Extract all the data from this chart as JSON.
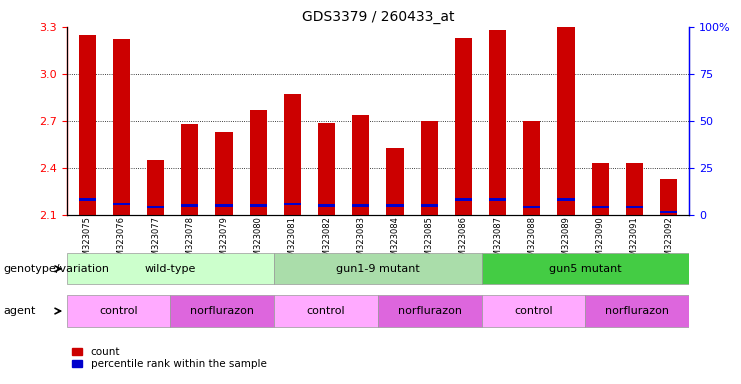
{
  "title": "GDS3379 / 260433_at",
  "samples": [
    "GSM323075",
    "GSM323076",
    "GSM323077",
    "GSM323078",
    "GSM323079",
    "GSM323080",
    "GSM323081",
    "GSM323082",
    "GSM323083",
    "GSM323084",
    "GSM323085",
    "GSM323086",
    "GSM323087",
    "GSM323088",
    "GSM323089",
    "GSM323090",
    "GSM323091",
    "GSM323092"
  ],
  "count_values": [
    3.25,
    3.22,
    2.45,
    2.68,
    2.63,
    2.77,
    2.87,
    2.69,
    2.74,
    2.53,
    2.7,
    3.23,
    3.28,
    2.7,
    3.3,
    2.43,
    2.43,
    2.33
  ],
  "percentile_values": [
    2.2,
    2.17,
    2.15,
    2.16,
    2.16,
    2.16,
    2.17,
    2.16,
    2.16,
    2.16,
    2.16,
    2.2,
    2.2,
    2.15,
    2.2,
    2.15,
    2.15,
    2.12
  ],
  "ymin": 2.1,
  "ymax": 3.3,
  "y_ticks": [
    2.1,
    2.4,
    2.7,
    3.0,
    3.3
  ],
  "right_yticks": [
    0,
    25,
    50,
    75,
    100
  ],
  "right_ytick_labels": [
    "0",
    "25",
    "50",
    "75",
    "100%"
  ],
  "bar_color": "#cc0000",
  "percentile_color": "#0000cc",
  "background_color": "#ffffff",
  "plot_bg_color": "#ffffff",
  "genotype_groups": [
    {
      "label": "wild-type",
      "start": 0,
      "end": 6,
      "color": "#ccffcc"
    },
    {
      "label": "gun1-9 mutant",
      "start": 6,
      "end": 12,
      "color": "#aaddaa"
    },
    {
      "label": "gun5 mutant",
      "start": 12,
      "end": 18,
      "color": "#44cc44"
    }
  ],
  "agent_groups": [
    {
      "label": "control",
      "start": 0,
      "end": 3,
      "color": "#ffaaff"
    },
    {
      "label": "norflurazon",
      "start": 3,
      "end": 6,
      "color": "#dd66dd"
    },
    {
      "label": "control",
      "start": 6,
      "end": 9,
      "color": "#ffaaff"
    },
    {
      "label": "norflurazon",
      "start": 9,
      "end": 12,
      "color": "#dd66dd"
    },
    {
      "label": "control",
      "start": 12,
      "end": 15,
      "color": "#ffaaff"
    },
    {
      "label": "norflurazon",
      "start": 15,
      "end": 18,
      "color": "#dd66dd"
    }
  ],
  "genotype_label": "genotype/variation",
  "agent_label": "agent",
  "legend_count": "count",
  "legend_percentile": "percentile rank within the sample",
  "title_fontsize": 10,
  "axis_fontsize": 8,
  "label_fontsize": 8,
  "group_fontsize": 8,
  "bar_width": 0.5
}
